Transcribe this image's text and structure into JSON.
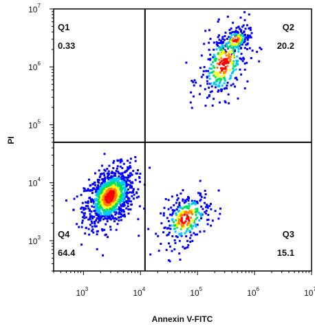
{
  "chart_data": {
    "type": "scatter",
    "title": "",
    "xlabel": "Annexin V-FITC",
    "ylabel": "PI",
    "x_scale": "log",
    "y_scale": "log",
    "xlim": [
      300,
      10000000
    ],
    "ylim": [
      300,
      10000000
    ],
    "x_ticks": [
      {
        "base": "10",
        "exp": "3",
        "value": 1000
      },
      {
        "base": "10",
        "exp": "4",
        "value": 10000
      },
      {
        "base": "10",
        "exp": "5",
        "value": 100000
      },
      {
        "base": "10",
        "exp": "6",
        "value": 1000000
      },
      {
        "base": "10",
        "exp": "7",
        "value": 10000000
      }
    ],
    "y_ticks": [
      {
        "base": "10",
        "exp": "3",
        "value": 1000
      },
      {
        "base": "10",
        "exp": "4",
        "value": 10000
      },
      {
        "base": "10",
        "exp": "5",
        "value": 100000
      },
      {
        "base": "10",
        "exp": "6",
        "value": 1000000
      },
      {
        "base": "10",
        "exp": "7",
        "value": 10000000
      }
    ],
    "gates": {
      "x": 12000,
      "y": 50000
    },
    "quadrants": [
      {
        "name": "Q1",
        "percent": "0.33",
        "position": "top-left"
      },
      {
        "name": "Q2",
        "percent": "20.2",
        "position": "top-right"
      },
      {
        "name": "Q3",
        "percent": "15.1",
        "position": "bottom-right"
      },
      {
        "name": "Q4",
        "percent": "64.4",
        "position": "bottom-left"
      }
    ],
    "density_colors": [
      "#0000ff",
      "#00c8ff",
      "#00e060",
      "#ffff00",
      "#ff8000",
      "#ff0000"
    ],
    "populations": [
      {
        "quadrant": "Q4",
        "x_center": 2800,
        "y_center": 6000,
        "x_spread_decades": 0.22,
        "y_spread_decades": 0.28,
        "count": 950
      },
      {
        "quadrant": "Q3",
        "x_center": 60000,
        "y_center": 2500,
        "x_spread_decades": 0.22,
        "y_spread_decades": 0.25,
        "count": 280
      },
      {
        "quadrant": "Q2",
        "x_center": 280000,
        "y_center": 1200000,
        "x_spread_decades": 0.22,
        "y_spread_decades": 0.35,
        "count": 330
      },
      {
        "quadrant": "Q2",
        "x_center": 450000,
        "y_center": 3000000,
        "x_spread_decades": 0.12,
        "y_spread_decades": 0.12,
        "count": 120
      }
    ]
  }
}
